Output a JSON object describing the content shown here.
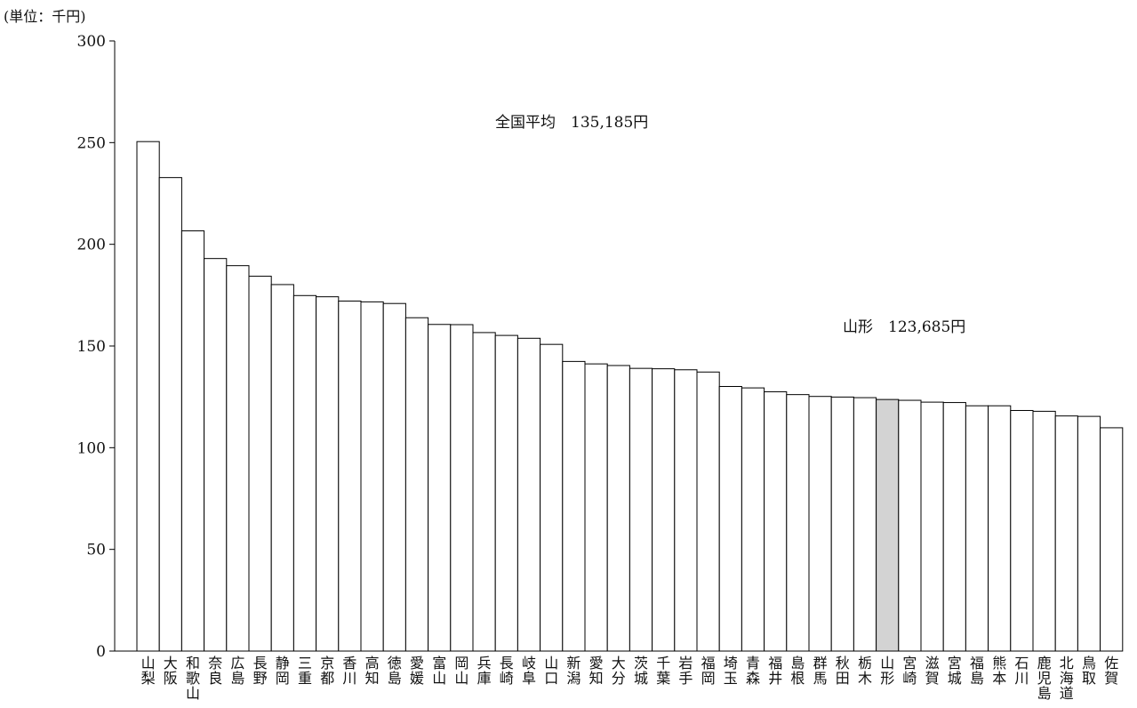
{
  "chart_data": {
    "type": "bar",
    "unit_label": "(単位：千円)",
    "ylim": [
      0,
      300
    ],
    "yticks": [
      0,
      50,
      100,
      150,
      200,
      250,
      300
    ],
    "grid": false,
    "categories": [
      "山梨",
      "大阪",
      "和歌山",
      "奈良",
      "広島",
      "長野",
      "静岡",
      "三重",
      "京都",
      "香川",
      "高知",
      "徳島",
      "愛媛",
      "富山",
      "岡山",
      "兵庫",
      "長崎",
      "岐阜",
      "山口",
      "新潟",
      "愛知",
      "大分",
      "茨城",
      "千葉",
      "岩手",
      "福岡",
      "埼玉",
      "青森",
      "福井",
      "島根",
      "群馬",
      "秋田",
      "栃木",
      "山形",
      "宮崎",
      "滋賀",
      "宮城",
      "福島",
      "熊本",
      "石川",
      "鹿児島",
      "北海道",
      "鳥取",
      "佐賀"
    ],
    "values": [
      250.5,
      232.8,
      206.6,
      193.0,
      189.5,
      184.3,
      180.2,
      174.8,
      174.2,
      172.1,
      171.7,
      170.9,
      163.9,
      160.6,
      160.5,
      156.6,
      155.2,
      153.8,
      150.8,
      142.4,
      141.2,
      140.4,
      139.0,
      138.8,
      138.3,
      137.2,
      130.1,
      129.4,
      127.5,
      126.1,
      125.2,
      124.9,
      124.6,
      123.7,
      123.3,
      122.4,
      122.2,
      120.6,
      120.6,
      118.3,
      117.9,
      115.6,
      115.4,
      109.8
    ],
    "highlight": "山形",
    "highlight_color": "#d3d3d3",
    "bar_color": "#ffffff",
    "annotations": {
      "national_average": "全国平均　135,185円",
      "yamagata": "山形　123,685円"
    }
  }
}
